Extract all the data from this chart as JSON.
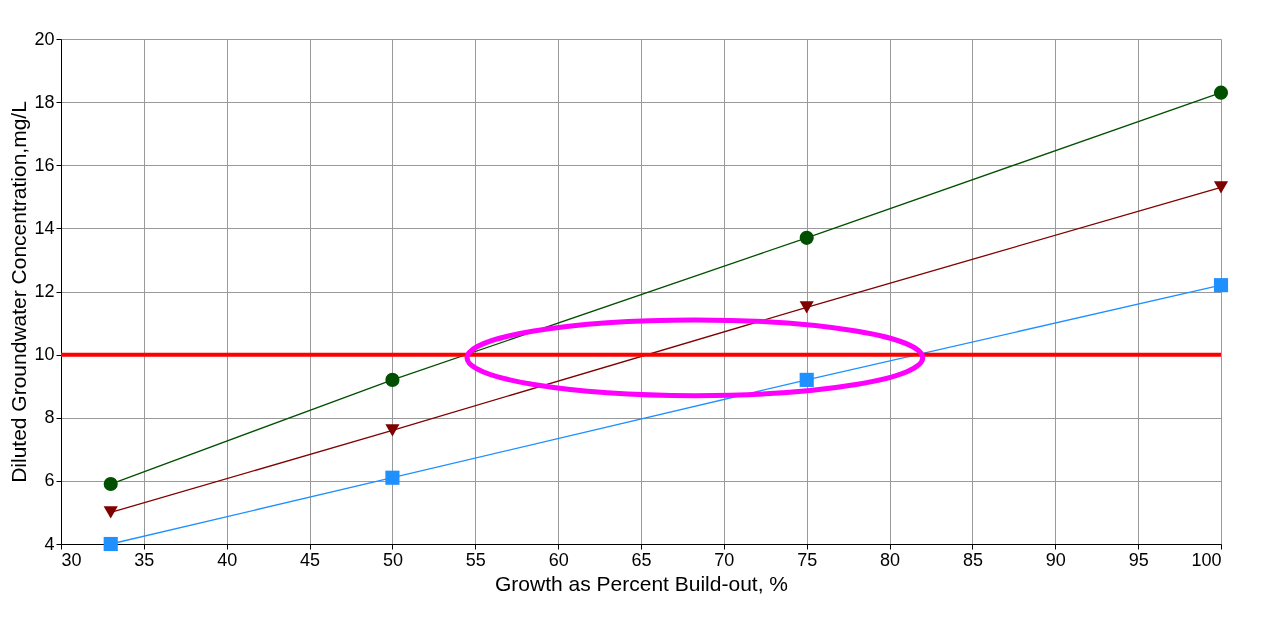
{
  "chart_data": {
    "type": "line",
    "xlabel": "Growth as Percent Build-out, %",
    "ylabel": "Diluted Groundwater Concentration,mg/L",
    "x": [
      33,
      50,
      75,
      100
    ],
    "series": [
      {
        "color": "#005000",
        "marker": "circle",
        "values": [
          5.9,
          9.2,
          13.7,
          18.3
        ]
      },
      {
        "color": "#800000",
        "marker": "triangle-down",
        "values": [
          5.0,
          7.6,
          11.5,
          15.3
        ]
      },
      {
        "color": "#1e90ff",
        "marker": "square",
        "values": [
          4.0,
          6.1,
          9.2,
          12.2
        ]
      }
    ],
    "xlim": [
      30,
      100
    ],
    "xticks": [
      30,
      35,
      40,
      45,
      50,
      55,
      60,
      65,
      70,
      75,
      80,
      85,
      90,
      95,
      100
    ],
    "ylim": [
      4,
      20
    ],
    "yticks": [
      4,
      6,
      8,
      10,
      12,
      14,
      16,
      18,
      20
    ],
    "ref_lines": [
      {
        "axis": "y",
        "value": 10,
        "color": "#ff0000"
      }
    ],
    "grid": true,
    "legend": false
  }
}
